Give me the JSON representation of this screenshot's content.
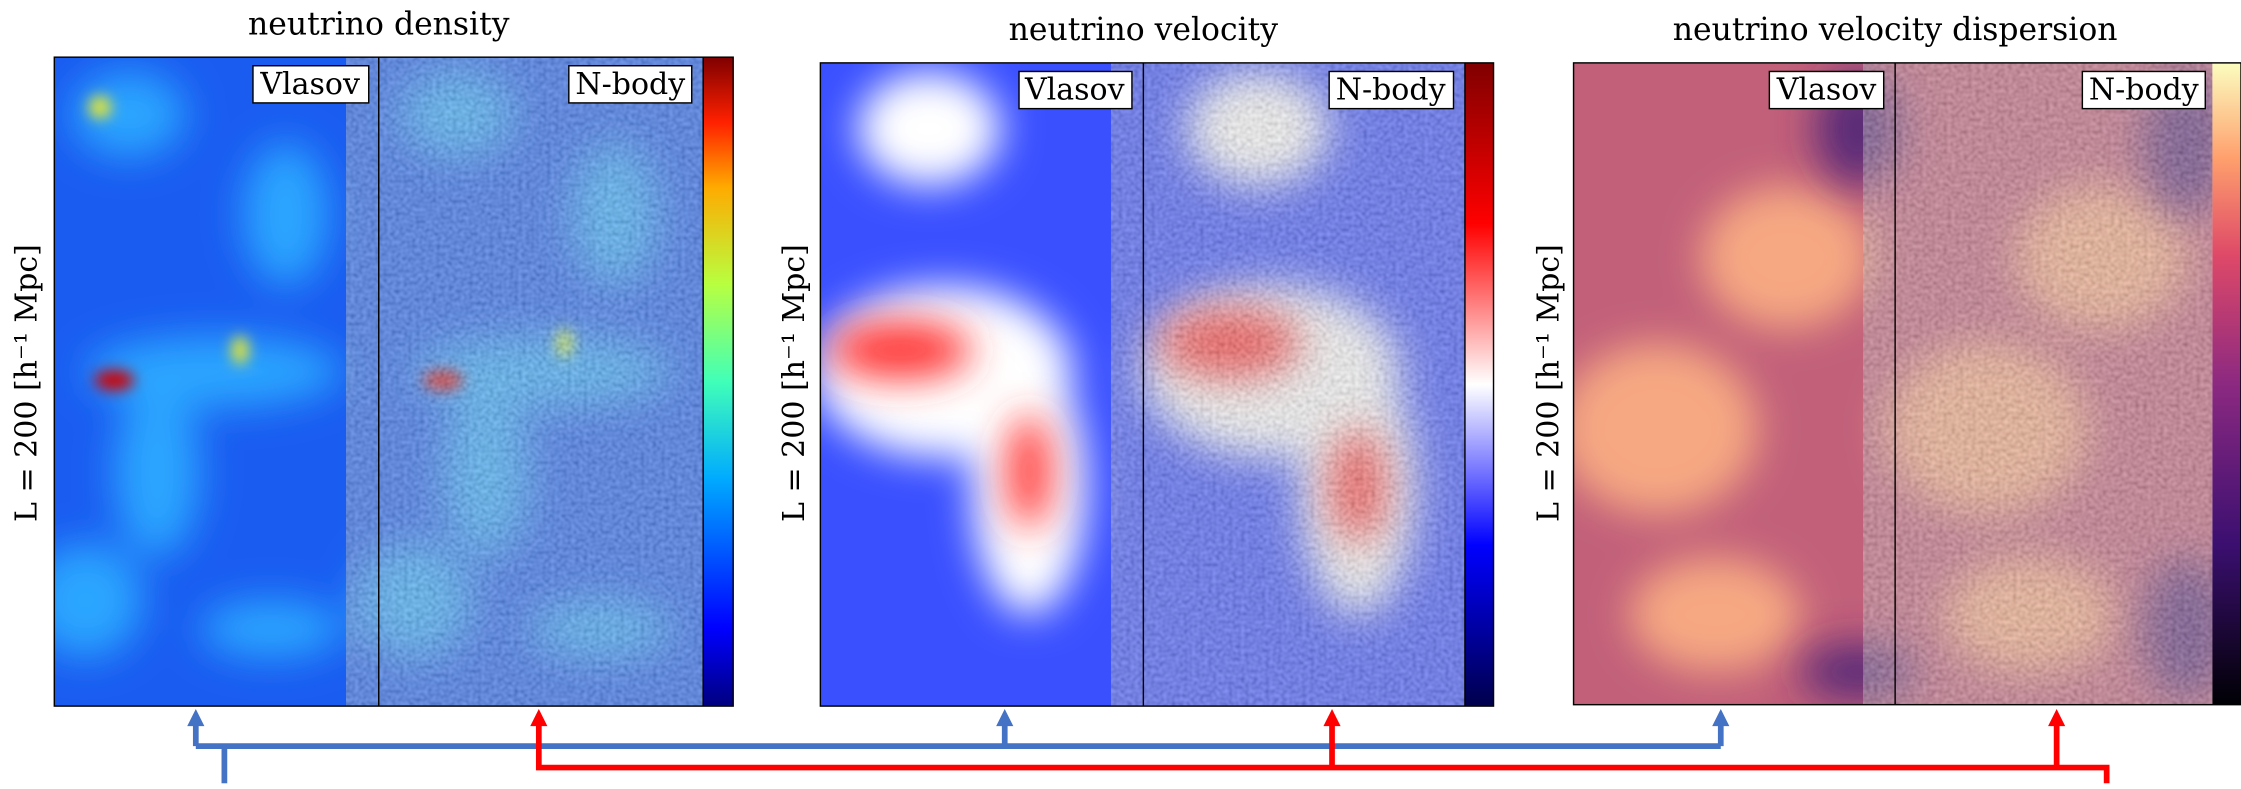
{
  "panels": [
    {
      "title": "neutrino density",
      "left_label": "Vlasov",
      "right_label": "N-body",
      "y_label": "L = 200 [h⁻¹ Mpc]"
    },
    {
      "title": "neutrino velocity",
      "left_label": "Vlasov",
      "right_label": "N-body",
      "y_label": "L = 200 [h⁻¹ Mpc]"
    },
    {
      "title": "neutrino velocity dispersion",
      "left_label": "Vlasov",
      "right_label": "N-body",
      "y_label": "L = 200 [h⁻¹ Mpc]"
    }
  ]
}
